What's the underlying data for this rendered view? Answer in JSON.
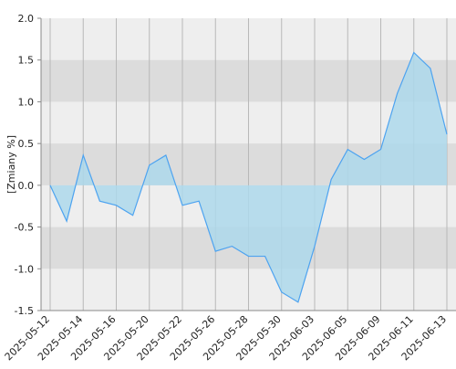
{
  "chart_data": {
    "type": "area",
    "ylabel": "[Zmiany %]",
    "categories": [
      "2025-05-12",
      null,
      "2025-05-14",
      null,
      "2025-05-16",
      null,
      "2025-05-20",
      null,
      "2025-05-22",
      null,
      "2025-05-26",
      null,
      "2025-05-28",
      null,
      "2025-05-30",
      null,
      "2025-06-03",
      null,
      "2025-06-05",
      null,
      "2025-06-09",
      null,
      "2025-06-11",
      null,
      "2025-06-13"
    ],
    "values": [
      0.0,
      -0.43,
      0.36,
      -0.19,
      -0.24,
      -0.36,
      0.24,
      0.36,
      -0.24,
      -0.19,
      -0.79,
      -0.73,
      -0.85,
      -0.85,
      -1.28,
      -1.4,
      -0.73,
      0.07,
      0.43,
      0.31,
      0.43,
      1.1,
      1.59,
      1.4,
      0.61
    ],
    "color": "#4da3f0",
    "fill_color": "#add8eb",
    "ylim": [
      -1.5,
      2.0
    ],
    "yticks": [
      {
        "value": -1.5,
        "label": "-1.5"
      },
      {
        "value": -1,
        "label": "-1.0"
      },
      {
        "value": -0.5,
        "label": "-0.5"
      },
      {
        "value": 0,
        "label": "0.0"
      },
      {
        "value": 0.5,
        "label": "0.5"
      },
      {
        "value": 1,
        "label": "1.0"
      },
      {
        "value": 1.5,
        "label": "1.5"
      },
      {
        "value": 2,
        "label": "2.0"
      }
    ],
    "grid": true
  }
}
